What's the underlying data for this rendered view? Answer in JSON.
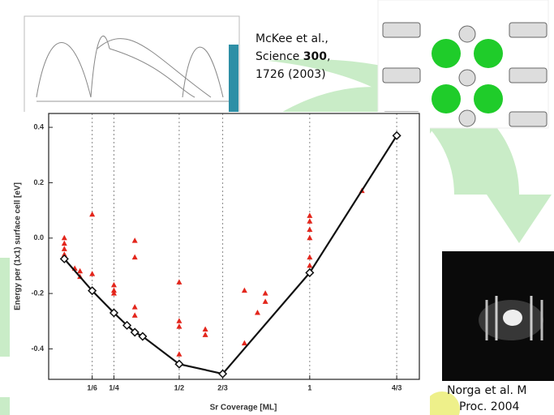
{
  "chart_data": {
    "type": "line",
    "xlabel": "Sr Coverage [ML]",
    "ylabel": "Energy per (1x1) surface cell [eV]",
    "xlim": [
      0,
      1.42
    ],
    "ylim": [
      -0.51,
      0.45
    ],
    "xticks": [
      {
        "value": 0.1667,
        "label": "1/6"
      },
      {
        "value": 0.25,
        "label": "1/4"
      },
      {
        "value": 0.5,
        "label": "1/2"
      },
      {
        "value": 0.6667,
        "label": "2/3"
      },
      {
        "value": 1,
        "label": "1"
      },
      {
        "value": 1.3333,
        "label": "4/3"
      }
    ],
    "yticks": [
      0.4,
      0.2,
      {
        "value": 0,
        "label": "0.0"
      },
      -0.2,
      -0.4
    ],
    "grid": true,
    "series": [
      {
        "type": "scatter",
        "color": "#e3261c",
        "marker": "triangle",
        "x": [
          0.06,
          0.06,
          0.06,
          0.06,
          0.1,
          0.12,
          0.12,
          0.1667,
          0.1667,
          0.25,
          0.25,
          0.25,
          0.33,
          0.33,
          0.33,
          0.33,
          0.5,
          0.5,
          0.5,
          0.5,
          0.6,
          0.6,
          0.75,
          0.75,
          0.8,
          0.83,
          0.83,
          1,
          1,
          1,
          1,
          1,
          1,
          1.2
        ],
        "values": [
          0.0,
          -0.02,
          -0.04,
          -0.06,
          -0.11,
          -0.12,
          -0.14,
          0.085,
          -0.13,
          -0.17,
          -0.19,
          -0.2,
          -0.01,
          -0.07,
          -0.25,
          -0.28,
          -0.16,
          -0.3,
          -0.32,
          -0.42,
          -0.33,
          -0.35,
          -0.19,
          -0.38,
          -0.27,
          -0.2,
          -0.23,
          0.08,
          0.06,
          0.03,
          0.0,
          -0.07,
          -0.1,
          0.17
        ]
      },
      {
        "type": "line",
        "color": "#111111",
        "marker": "diamond",
        "x": [
          0.06,
          0.1667,
          0.25,
          0.3,
          0.33,
          0.36,
          0.5,
          0.6667,
          1,
          1.3333
        ],
        "values": [
          -0.075,
          -0.19,
          -0.27,
          -0.315,
          -0.34,
          -0.355,
          -0.455,
          -0.49,
          -0.125,
          0.37
        ]
      }
    ]
  },
  "citations": [
    {
      "lines": [
        "McKee et al.,",
        "Science ",
        "300",
        ",",
        "1726 (2003)"
      ]
    },
    {
      "lines": [
        "Norga et al. M",
        "Proc. 2004"
      ]
    }
  ]
}
